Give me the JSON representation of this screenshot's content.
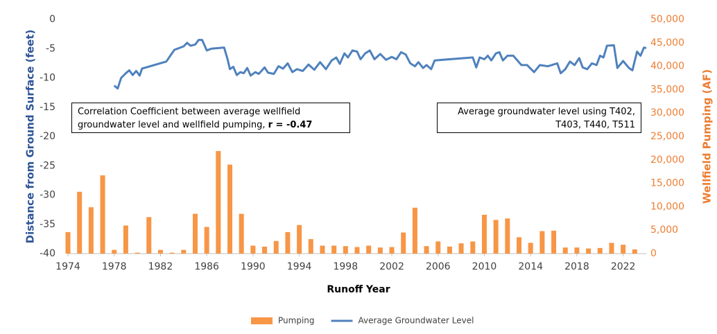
{
  "chart_data": {
    "type": "bar",
    "x_label": "Runoff Year",
    "y_label": "Distance from Ground Surface (feet)",
    "y2_label": "Wellfield Pumping (AF)",
    "annotations": [
      {
        "text": "Correlation Coefficient between average wellfield groundwater level and wellfield pumping, ",
        "bold": "r = -0.47"
      },
      {
        "text": "Average groundwater level using T402, T403, T440, T511"
      }
    ],
    "xlim": [
      1974,
      2024
    ],
    "xticks": [
      1974,
      1978,
      1982,
      1986,
      1990,
      1994,
      1998,
      2002,
      2006,
      2010,
      2014,
      2018,
      2022
    ],
    "ylim": [
      -40,
      0
    ],
    "yticks": [
      0,
      -5,
      -10,
      -15,
      -20,
      -25,
      -30,
      -35,
      -40
    ],
    "y2lim": [
      0,
      50000
    ],
    "y2ticks": [
      0,
      {
        "value": 5000,
        "label": "5,000"
      },
      {
        "value": 10000,
        "label": "10,000"
      },
      {
        "value": 15000,
        "label": "15,000"
      },
      {
        "value": 20000,
        "label": "20,000"
      },
      {
        "value": 25000,
        "label": "25,000"
      },
      {
        "value": 30000,
        "label": "30,000"
      },
      {
        "value": 35000,
        "label": "35,000"
      },
      {
        "value": 40000,
        "label": "40,000"
      },
      {
        "value": 45000,
        "label": "45,000"
      },
      {
        "value": 50000,
        "label": "50,000"
      }
    ],
    "grid": false,
    "legend": "bottom",
    "series": [
      {
        "name": "Pumping",
        "type": "bar",
        "axis": "y2",
        "color": "#f79646",
        "x": [
          1974,
          1975,
          1976,
          1977,
          1978,
          1979,
          1980,
          1981,
          1982,
          1983,
          1984,
          1985,
          1986,
          1987,
          1988,
          1989,
          1990,
          1991,
          1992,
          1993,
          1994,
          1995,
          1996,
          1997,
          1998,
          1999,
          2000,
          2001,
          2002,
          2003,
          2004,
          2005,
          2006,
          2007,
          2008,
          2009,
          2010,
          2011,
          2012,
          2013,
          2014,
          2015,
          2016,
          2017,
          2018,
          2019,
          2020,
          2021,
          2022,
          2023
        ],
        "values": [
          4600,
          13200,
          9900,
          16700,
          800,
          6000,
          200,
          7800,
          800,
          200,
          800,
          8500,
          5700,
          21900,
          19000,
          8500,
          1700,
          1500,
          2700,
          4600,
          6100,
          3100,
          1700,
          1700,
          1600,
          1400,
          1700,
          1300,
          1400,
          4500,
          9800,
          1600,
          2600,
          1500,
          2200,
          2600,
          8300,
          7200,
          7500,
          3500,
          2300,
          4800,
          4900,
          1300,
          1300,
          1100,
          1200,
          2300,
          1900,
          900
        ]
      },
      {
        "name": "Average Groundwater Level",
        "type": "line",
        "color": "#4f81bd",
        "x": [
          1978.0,
          1978.3,
          1978.6,
          1979.0,
          1979.3,
          1979.6,
          1979.9,
          1980.2,
          1980.4,
          1982.5,
          1983.2,
          1984.0,
          1984.3,
          1984.6,
          1985.0,
          1985.3,
          1985.6,
          1986.0,
          1986.4,
          1987.5,
          1987.8,
          1988.0,
          1988.3,
          1988.6,
          1988.9,
          1989.2,
          1989.5,
          1989.8,
          1990.2,
          1990.5,
          1991.0,
          1991.3,
          1991.8,
          1992.2,
          1992.6,
          1993.0,
          1993.4,
          1993.8,
          1994.3,
          1994.8,
          1995.3,
          1995.8,
          1996.3,
          1996.8,
          1997.2,
          1997.5,
          1997.9,
          1998.2,
          1998.6,
          1999.0,
          1999.3,
          1999.7,
          2000.1,
          2000.5,
          2001.0,
          2001.5,
          2002.0,
          2002.4,
          2002.8,
          2003.2,
          2003.6,
          2004.0,
          2004.3,
          2004.7,
          2005.0,
          2005.4,
          2005.7,
          2009.0,
          2009.3,
          2009.6,
          2010.0,
          2010.3,
          2010.6,
          2011.0,
          2011.3,
          2011.6,
          2012.0,
          2012.5,
          2013.2,
          2013.7,
          2014.3,
          2014.8,
          2015.5,
          2016.3,
          2016.6,
          2017.0,
          2017.4,
          2017.8,
          2018.2,
          2018.5,
          2018.9,
          2019.3,
          2019.7,
          2020.0,
          2020.3,
          2020.6,
          2021.2,
          2021.5,
          2022.0,
          2022.5,
          2022.8,
          2023.2,
          2023.5,
          2023.8,
          2024.0
        ],
        "values": [
          -11.3,
          -11.8,
          -10,
          -9.2,
          -8.7,
          -9.5,
          -8.8,
          -9.6,
          -8.4,
          -7.2,
          -5.2,
          -4.6,
          -4.0,
          -4.5,
          -4.3,
          -3.5,
          -3.5,
          -5.3,
          -5.0,
          -4.8,
          -6.8,
          -8.5,
          -8.1,
          -9.5,
          -9.0,
          -9.2,
          -8.3,
          -9.6,
          -9.0,
          -9.3,
          -8.2,
          -9.1,
          -9.3,
          -8.0,
          -8.4,
          -7.5,
          -9.0,
          -8.5,
          -8.8,
          -7.7,
          -8.6,
          -7.3,
          -8.5,
          -7.0,
          -6.5,
          -7.6,
          -5.8,
          -6.5,
          -5.3,
          -5.5,
          -6.8,
          -5.8,
          -5.3,
          -6.8,
          -5.9,
          -6.9,
          -6.4,
          -6.8,
          -5.6,
          -6.0,
          -7.5,
          -8.0,
          -7.3,
          -8.3,
          -7.8,
          -8.5,
          -7.0,
          -6.5,
          -8.2,
          -6.5,
          -6.8,
          -6.2,
          -7.0,
          -5.8,
          -5.6,
          -7.0,
          -6.2,
          -6.2,
          -7.8,
          -7.8,
          -9.0,
          -7.8,
          -8.0,
          -7.5,
          -9.2,
          -8.5,
          -7.2,
          -7.8,
          -6.6,
          -8.2,
          -8.5,
          -7.5,
          -7.8,
          -6.2,
          -6.5,
          -4.5,
          -4.4,
          -8.3,
          -7.1,
          -8.3,
          -8.7,
          -5.5,
          -6.2,
          -4.8,
          -4.9
        ]
      }
    ]
  }
}
